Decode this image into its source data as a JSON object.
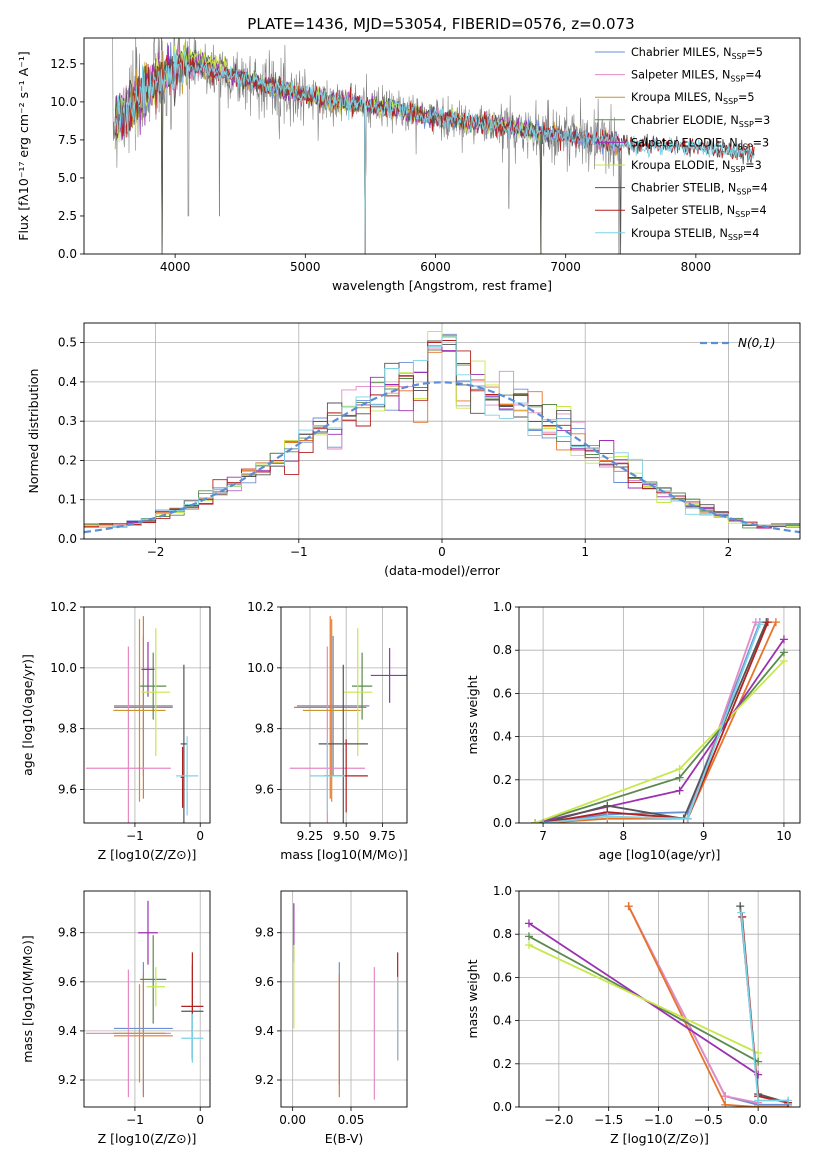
{
  "figure": {
    "title": "PLATE=1436, MJD=53054, FIBERID=0576, z=0.073"
  },
  "palette": {
    "Chabrier MILES": "#6b8fd6",
    "Salpeter MILES": "#e58ac4",
    "Kroupa MILES": "#c8952e",
    "Chabrier ELODIE": "#5b8a4e",
    "Salpeter ELODIE": "#9b30b0",
    "Kroupa ELODIE": "#c6e84c",
    "Chabrier STELIB": "#555555",
    "Salpeter STELIB": "#b22222",
    "Kroupa STELIB": "#7dd3e6",
    "data": "#808080",
    "orange": "#e8742a",
    "gaussian": "#5b8ed6"
  },
  "chart_data": [
    {
      "id": "spectrum",
      "type": "line",
      "title": "PLATE=1436, MJD=53054, FIBERID=0576, z=0.073",
      "xlabel": "wavelength [Angstrom, rest frame]",
      "ylabel_html": "Flux [fλ10⁻¹⁷ erg cm⁻² s⁻¹ A⁻¹]",
      "xlim": [
        3300,
        8800
      ],
      "ylim": [
        0,
        14.2
      ],
      "xticks": [
        4000,
        5000,
        6000,
        7000,
        8000
      ],
      "yticks": [
        0.0,
        2.5,
        5.0,
        7.5,
        10.0,
        12.5
      ],
      "legend_position": "upper-right",
      "legend": [
        {
          "label": "Chabrier MILES, N",
          "sub": "SSP",
          "suffix": "=5",
          "color_key": "Chabrier MILES"
        },
        {
          "label": "Salpeter MILES, N",
          "sub": "SSP",
          "suffix": "=4",
          "color_key": "Salpeter MILES"
        },
        {
          "label": "Kroupa MILES, N",
          "sub": "SSP",
          "suffix": "=5",
          "color_key": "Kroupa MILES"
        },
        {
          "label": "Chabrier ELODIE, N",
          "sub": "SSP",
          "suffix": "=3",
          "color_key": "Chabrier ELODIE"
        },
        {
          "label": "Salpeter ELODIE, N",
          "sub": "SSP",
          "suffix": "=3",
          "color_key": "Salpeter ELODIE"
        },
        {
          "label": "Kroupa ELODIE, N",
          "sub": "SSP",
          "suffix": "=3",
          "color_key": "Kroupa ELODIE"
        },
        {
          "label": "Chabrier STELIB, N",
          "sub": "SSP",
          "suffix": "=4",
          "color_key": "Chabrier STELIB"
        },
        {
          "label": "Salpeter STELIB, N",
          "sub": "SSP",
          "suffix": "=4",
          "color_key": "Salpeter STELIB"
        },
        {
          "label": "Kroupa STELIB, N",
          "sub": "SSP",
          "suffix": "=4",
          "color_key": "Kroupa STELIB"
        }
      ],
      "data_range": [
        3520,
        7420
      ],
      "model_ranges": {
        "MILES": [
          3540,
          7420
        ],
        "ELODIE": [
          3540,
          6810
        ],
        "STELIB": [
          3540,
          8450
        ]
      },
      "continuum": [
        [
          3520,
          8.6
        ],
        [
          3650,
          9.6
        ],
        [
          3800,
          11.0
        ],
        [
          3950,
          12.0
        ],
        [
          4100,
          12.3
        ],
        [
          4300,
          12.0
        ],
        [
          4500,
          11.5
        ],
        [
          4800,
          10.9
        ],
        [
          5000,
          10.4
        ],
        [
          5300,
          10.0
        ],
        [
          5600,
          9.6
        ],
        [
          6000,
          9.0
        ],
        [
          6400,
          8.5
        ],
        [
          6800,
          8.0
        ],
        [
          7000,
          7.8
        ],
        [
          7400,
          7.3
        ],
        [
          8000,
          7.0
        ],
        [
          8300,
          6.8
        ],
        [
          8450,
          6.7
        ]
      ],
      "absorption": [
        [
          3934,
          9.1
        ],
        [
          3968,
          8.2
        ],
        [
          4102,
          2.5
        ],
        [
          4340,
          2.5
        ],
        [
          5460,
          0.0
        ],
        [
          6563,
          3.0
        ],
        [
          6810,
          0.0
        ],
        [
          7410,
          0.0
        ]
      ],
      "model_spikes": [
        [
          3900,
          0.0
        ],
        [
          5460,
          0.0
        ],
        [
          6810,
          0.0
        ],
        [
          7420,
          0.0
        ]
      ]
    },
    {
      "id": "residuals",
      "type": "histogram",
      "xlabel": "(data-model)/error",
      "ylabel": "Normed distribution",
      "xlim": [
        -2.5,
        2.5
      ],
      "ylim": [
        0,
        0.55
      ],
      "xticks": [
        -2,
        -1,
        0,
        1,
        2
      ],
      "yticks": [
        0.0,
        0.1,
        0.2,
        0.3,
        0.4,
        0.5
      ],
      "legend": [
        {
          "label": "N(0,1)",
          "style": "dashed"
        }
      ],
      "legend_position": "upper-right",
      "bin_width": 0.1
    },
    {
      "id": "age_vs_Z",
      "type": "errorbar",
      "xlabel": "Z [log10(Z/Z⊙)]",
      "ylabel": "age  [log10(age/yr)]",
      "xlim": [
        -1.78,
        0.15
      ],
      "ylim": [
        9.49,
        10.2
      ],
      "xticks": [
        -1,
        0
      ],
      "yticks": [
        9.6,
        9.8,
        10.0,
        10.2
      ],
      "points": [
        {
          "color_key": "Chabrier MILES",
          "x": -0.87,
          "xerr": 0.45,
          "y": 9.875,
          "yerr": 0.23
        },
        {
          "color_key": "orange",
          "x": -0.87,
          "xerr": 0.45,
          "y": 9.87,
          "yerr": 0.3
        },
        {
          "color_key": "Salpeter MILES",
          "x": -1.1,
          "xerr": 0.65,
          "y": 9.67,
          "yerr": 0.4
        },
        {
          "color_key": "Kroupa MILES",
          "x": -0.93,
          "xerr": 0.4,
          "y": 9.86,
          "yerr": 0.3
        },
        {
          "color_key": "Chabrier ELODIE",
          "x": -0.72,
          "xerr": 0.2,
          "y": 9.94,
          "yerr": 0.11
        },
        {
          "color_key": "Salpeter ELODIE",
          "x": -0.8,
          "xerr": 0.1,
          "y": 9.995,
          "yerr": 0.09
        },
        {
          "color_key": "Kroupa ELODIE",
          "x": -0.68,
          "xerr": 0.22,
          "y": 9.92,
          "yerr": 0.21
        },
        {
          "color_key": "Chabrier STELIB",
          "x": -0.25,
          "xerr": 0.05,
          "y": 9.75,
          "yerr": 0.26
        },
        {
          "color_key": "Salpeter STELIB",
          "x": -0.27,
          "xerr": 0.03,
          "y": 9.64,
          "yerr": 0.1
        },
        {
          "color_key": "Kroupa STELIB",
          "x": -0.2,
          "xerr": 0.17,
          "y": 9.645,
          "yerr": 0.13
        }
      ]
    },
    {
      "id": "age_vs_mass",
      "type": "errorbar",
      "xlabel": "mass [log10(M/M⊙)]",
      "ylabel": "",
      "xlim": [
        9.05,
        9.92
      ],
      "ylim": [
        9.49,
        10.2
      ],
      "xticks": [
        9.25,
        9.5,
        9.75
      ],
      "yticks": [
        9.6,
        9.8,
        10.0,
        10.2
      ],
      "points": [
        {
          "color_key": "Chabrier MILES",
          "x": 9.41,
          "xerr": 0.25,
          "y": 9.875,
          "yerr": 0.23
        },
        {
          "color_key": "orange",
          "x": 9.39,
          "xerr": 0.25,
          "y": 9.87,
          "yerr": 0.3
        },
        {
          "color_key": "Salpeter MILES",
          "x": 9.37,
          "xerr": 0.26,
          "y": 9.67,
          "yerr": 0.4
        },
        {
          "color_key": "Kroupa MILES",
          "x": 9.4,
          "xerr": 0.2,
          "y": 9.86,
          "yerr": 0.3
        },
        {
          "color_key": "Chabrier ELODIE",
          "x": 9.61,
          "xerr": 0.07,
          "y": 9.94,
          "yerr": 0.11
        },
        {
          "color_key": "Salpeter ELODIE",
          "x": 9.8,
          "xerr": 0.13,
          "y": 9.975,
          "yerr": 0.09
        },
        {
          "color_key": "Kroupa ELODIE",
          "x": 9.58,
          "xerr": 0.1,
          "y": 9.92,
          "yerr": 0.21
        },
        {
          "color_key": "Chabrier STELIB",
          "x": 9.48,
          "xerr": 0.17,
          "y": 9.75,
          "yerr": 0.26
        },
        {
          "color_key": "Salpeter STELIB",
          "x": 9.5,
          "xerr": 0.15,
          "y": 9.645,
          "yerr": 0.12
        },
        {
          "color_key": "Kroupa STELIB",
          "x": 9.37,
          "xerr": 0.12,
          "y": 9.645,
          "yerr": 0.12
        }
      ]
    },
    {
      "id": "mass_weight_vs_age",
      "type": "line",
      "xlabel": "age  [log10(age/yr)]",
      "ylabel": "mass weight",
      "xlim": [
        6.7,
        10.2
      ],
      "ylim": [
        0,
        1.0
      ],
      "xticks": [
        7,
        8,
        9,
        10
      ],
      "yticks": [
        0.0,
        0.2,
        0.4,
        0.6,
        0.8,
        1.0
      ],
      "series": [
        {
          "color_key": "Chabrier MILES",
          "points": [
            [
              7.0,
              0.0
            ],
            [
              7.8,
              0.04
            ],
            [
              8.8,
              0.05
            ],
            [
              9.7,
              0.93
            ]
          ]
        },
        {
          "color_key": "Salpeter MILES",
          "points": [
            [
              7.0,
              0.0
            ],
            [
              7.8,
              0.05
            ],
            [
              8.8,
              0.02
            ],
            [
              9.65,
              0.93
            ]
          ]
        },
        {
          "color_key": "orange",
          "points": [
            [
              7.0,
              0.0
            ],
            [
              7.8,
              0.02
            ],
            [
              8.8,
              0.02
            ],
            [
              9.9,
              0.93
            ]
          ]
        },
        {
          "color_key": "Chabrier ELODIE",
          "points": [
            [
              6.9,
              0.0
            ],
            [
              8.7,
              0.21
            ],
            [
              10.0,
              0.79
            ]
          ]
        },
        {
          "color_key": "Salpeter ELODIE",
          "points": [
            [
              6.9,
              0.0
            ],
            [
              8.7,
              0.15
            ],
            [
              10.0,
              0.85
            ]
          ]
        },
        {
          "color_key": "Kroupa ELODIE",
          "points": [
            [
              6.9,
              0.0
            ],
            [
              8.7,
              0.25
            ],
            [
              10.0,
              0.75
            ]
          ]
        },
        {
          "color_key": "Chabrier STELIB",
          "points": [
            [
              7.0,
              0.0
            ],
            [
              7.8,
              0.08
            ],
            [
              8.75,
              0.02
            ],
            [
              9.78,
              0.93
            ]
          ]
        },
        {
          "color_key": "Salpeter STELIB",
          "points": [
            [
              7.0,
              0.0
            ],
            [
              7.8,
              0.05
            ],
            [
              8.8,
              0.02
            ],
            [
              9.8,
              0.93
            ]
          ]
        },
        {
          "color_key": "Kroupa STELIB",
          "points": [
            [
              7.0,
              0.0
            ],
            [
              7.8,
              0.03
            ],
            [
              8.8,
              0.02
            ],
            [
              9.7,
              0.92
            ]
          ]
        }
      ]
    },
    {
      "id": "mass_vs_Z",
      "type": "errorbar",
      "xlabel": "Z [log10(Z/Z⊙)]",
      "ylabel": "mass [log10(M/M⊙)]",
      "xlim": [
        -1.78,
        0.15
      ],
      "ylim": [
        9.09,
        9.97
      ],
      "xticks": [
        -1,
        0
      ],
      "yticks": [
        9.2,
        9.4,
        9.6,
        9.8
      ],
      "points": [
        {
          "color_key": "Chabrier MILES",
          "x": -0.87,
          "xerr": 0.45,
          "y": 9.41,
          "yerr": 0.27
        },
        {
          "color_key": "orange",
          "x": -0.87,
          "xerr": 0.45,
          "y": 9.38,
          "yerr": 0.25
        },
        {
          "color_key": "Salpeter MILES",
          "x": -1.1,
          "xerr": 0.65,
          "y": 9.39,
          "yerr": 0.26
        },
        {
          "color_key": "Kroupa MILES",
          "x": -0.93,
          "xerr": 0.4,
          "y": 9.39,
          "yerr": 0.2
        },
        {
          "color_key": "Chabrier ELODIE",
          "x": -0.72,
          "xerr": 0.2,
          "y": 9.61,
          "yerr": 0.18
        },
        {
          "color_key": "Salpeter ELODIE",
          "x": -0.8,
          "xerr": 0.15,
          "y": 9.8,
          "yerr": 0.13
        },
        {
          "color_key": "Kroupa ELODIE",
          "x": -0.68,
          "xerr": 0.14,
          "y": 9.58,
          "yerr": 0.08
        },
        {
          "color_key": "Chabrier STELIB",
          "x": -0.12,
          "xerr": 0.17,
          "y": 9.48,
          "yerr": 0.19
        },
        {
          "color_key": "Salpeter STELIB",
          "x": -0.12,
          "xerr": 0.17,
          "y": 9.5,
          "yerr": 0.22
        },
        {
          "color_key": "Kroupa STELIB",
          "x": -0.12,
          "xerr": 0.17,
          "y": 9.37,
          "yerr": 0.1
        }
      ]
    },
    {
      "id": "mass_vs_EBV",
      "type": "errorbar",
      "xlabel": "E(B-V)",
      "ylabel": "",
      "xlim": [
        -0.01,
        0.098
      ],
      "ylim": [
        9.09,
        9.97
      ],
      "xticks": [
        0.0,
        0.05
      ],
      "yticks": [
        9.2,
        9.4,
        9.6,
        9.8
      ],
      "points": [
        {
          "color_key": "Chabrier MILES",
          "x": 0.04,
          "xerr": 0,
          "y": 9.43,
          "yerr": 0.25
        },
        {
          "color_key": "orange",
          "x": 0.04,
          "xerr": 0,
          "y": 9.38,
          "yerr": 0.25
        },
        {
          "color_key": "Salpeter MILES",
          "x": 0.07,
          "xerr": 0,
          "y": 9.39,
          "yerr": 0.27
        },
        {
          "color_key": "Salpeter ELODIE",
          "x": 0.001,
          "xerr": 0,
          "y": 9.8,
          "yerr": 0.12
        },
        {
          "color_key": "Kroupa ELODIE",
          "x": 0.001,
          "xerr": 0,
          "y": 9.58,
          "yerr": 0.17
        },
        {
          "color_key": "Salpeter STELIB",
          "x": 0.09,
          "xerr": 0,
          "y": 9.5,
          "yerr": 0.22
        },
        {
          "color_key": "Kroupa STELIB",
          "x": 0.09,
          "xerr": 0,
          "y": 9.45,
          "yerr": 0.17
        }
      ]
    },
    {
      "id": "mass_weight_vs_Z",
      "type": "line",
      "xlabel": "Z [log10(Z/Z⊙)]",
      "ylabel": "mass weight",
      "xlim": [
        -2.4,
        0.42
      ],
      "ylim": [
        0,
        1.0
      ],
      "xticks": [
        -2.0,
        -1.5,
        -1.0,
        -0.5,
        0.0
      ],
      "yticks": [
        0.0,
        0.2,
        0.4,
        0.6,
        0.8,
        1.0
      ],
      "series": [
        {
          "color_key": "Chabrier MILES",
          "points": [
            [
              -1.3,
              0.93
            ],
            [
              -0.33,
              0.05
            ],
            [
              0.0,
              0.01
            ],
            [
              0.3,
              0.01
            ]
          ]
        },
        {
          "color_key": "Salpeter MILES",
          "points": [
            [
              -1.3,
              0.93
            ],
            [
              -0.33,
              0.05
            ],
            [
              0.0,
              0.02
            ]
          ]
        },
        {
          "color_key": "orange",
          "points": [
            [
              -1.3,
              0.93
            ],
            [
              -0.33,
              0.01
            ],
            [
              0.0,
              0.0
            ],
            [
              0.3,
              0.0
            ]
          ]
        },
        {
          "color_key": "Chabrier ELODIE",
          "points": [
            [
              -2.3,
              0.79
            ],
            [
              0.0,
              0.21
            ]
          ]
        },
        {
          "color_key": "Salpeter ELODIE",
          "points": [
            [
              -2.3,
              0.85
            ],
            [
              0.0,
              0.15
            ]
          ]
        },
        {
          "color_key": "Kroupa ELODIE",
          "points": [
            [
              -2.3,
              0.75
            ],
            [
              0.0,
              0.25
            ]
          ]
        },
        {
          "color_key": "Chabrier STELIB",
          "points": [
            [
              -0.18,
              0.93
            ],
            [
              0.0,
              0.06
            ],
            [
              0.3,
              0.02
            ]
          ]
        },
        {
          "color_key": "Salpeter STELIB",
          "points": [
            [
              -0.16,
              0.88
            ],
            [
              0.0,
              0.05
            ],
            [
              0.3,
              0.02
            ]
          ]
        },
        {
          "color_key": "Kroupa STELIB",
          "points": [
            [
              -0.17,
              0.9
            ],
            [
              0.0,
              0.03
            ],
            [
              0.3,
              0.03
            ]
          ]
        }
      ]
    }
  ]
}
